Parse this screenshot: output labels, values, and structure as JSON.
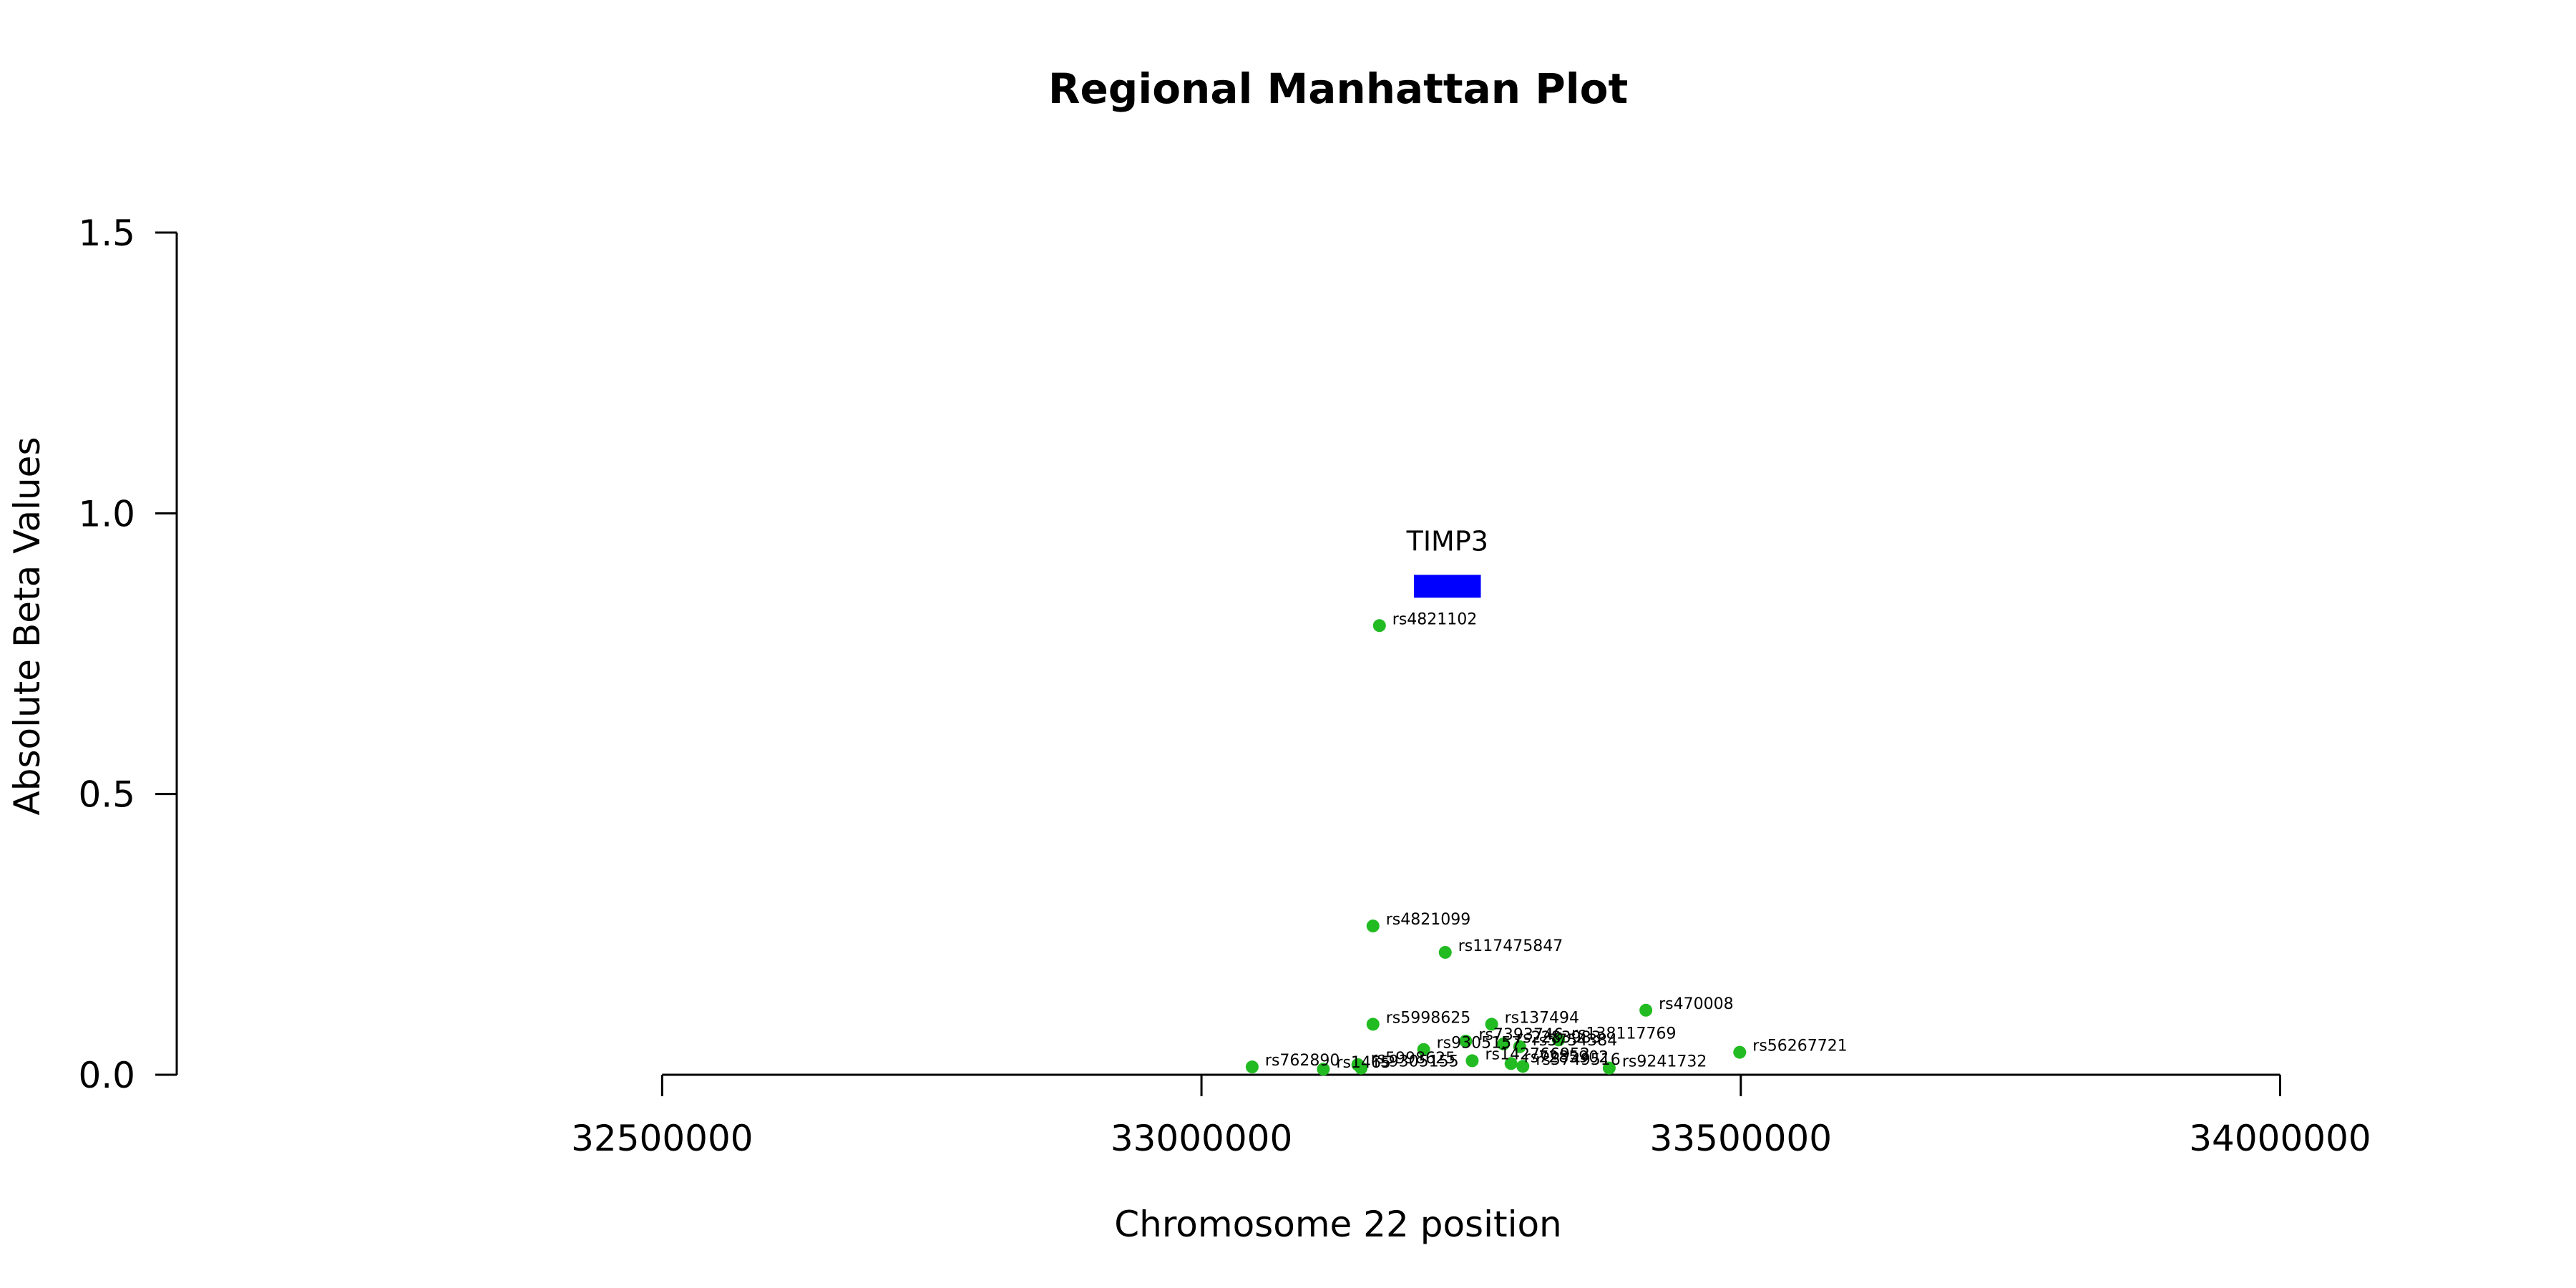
{
  "chart_data": {
    "type": "scatter",
    "title": "Regional Manhattan Plot",
    "xlabel": "Chromosome 22 position",
    "ylabel": "Absolute Beta Values",
    "xlim": [
      32050000,
      34200000
    ],
    "ylim": [
      0,
      1.5
    ],
    "x_ticks": [
      32500000,
      33000000,
      33500000,
      34000000
    ],
    "x_tick_labels": [
      "32500000",
      "33000000",
      "33500000",
      "34000000"
    ],
    "y_ticks": [
      0.0,
      0.5,
      1.0,
      1.5
    ],
    "y_tick_labels": [
      "0.0",
      "0.5",
      "1.0",
      "1.5"
    ],
    "point_color": "#22bb22",
    "gene_color": "#0000ff",
    "genes": [
      {
        "name": "TIMP3",
        "start": 33197000,
        "end": 33259000,
        "y": 0.87
      }
    ],
    "points": [
      {
        "snp": "rs4821102",
        "x": 33165000,
        "y": 0.8
      },
      {
        "snp": "rs4821099",
        "x": 33159000,
        "y": 0.265
      },
      {
        "snp": "rs117475847",
        "x": 33226000,
        "y": 0.218
      },
      {
        "snp": "rs470008",
        "x": 33412000,
        "y": 0.115
      },
      {
        "snp": "rs5998625",
        "x": 33159000,
        "y": 0.09
      },
      {
        "snp": "rs137494",
        "x": 33269000,
        "y": 0.09
      },
      {
        "snp": "rs138117769",
        "x": 33331000,
        "y": 0.062
      },
      {
        "snp": "rs2283983",
        "x": 33280000,
        "y": 0.055
      },
      {
        "snp": "rs5754384",
        "x": 33295000,
        "y": 0.05
      },
      {
        "snp": "rs7393746",
        "x": 33245000,
        "y": 0.06
      },
      {
        "snp": "rs56267721",
        "x": 33499000,
        "y": 0.04
      },
      {
        "snp": "rs9305157",
        "x": 33206000,
        "y": 0.045
      },
      {
        "snp": "rs142766952",
        "x": 33251000,
        "y": 0.025
      },
      {
        "snp": "rs7285902",
        "x": 33287000,
        "y": 0.02
      },
      {
        "snp": "rs9241732",
        "x": 33378000,
        "y": 0.012
      },
      {
        "snp": "rs762890",
        "x": 33047000,
        "y": 0.014
      },
      {
        "snp": "rs5998625",
        "x": 33145000,
        "y": 0.018
      },
      {
        "snp": "rs9305155",
        "x": 33148000,
        "y": 0.012
      },
      {
        "snp": "rs1465",
        "x": 33113000,
        "y": 0.01
      },
      {
        "snp": "rs5749516",
        "x": 33298000,
        "y": 0.015
      }
    ]
  }
}
